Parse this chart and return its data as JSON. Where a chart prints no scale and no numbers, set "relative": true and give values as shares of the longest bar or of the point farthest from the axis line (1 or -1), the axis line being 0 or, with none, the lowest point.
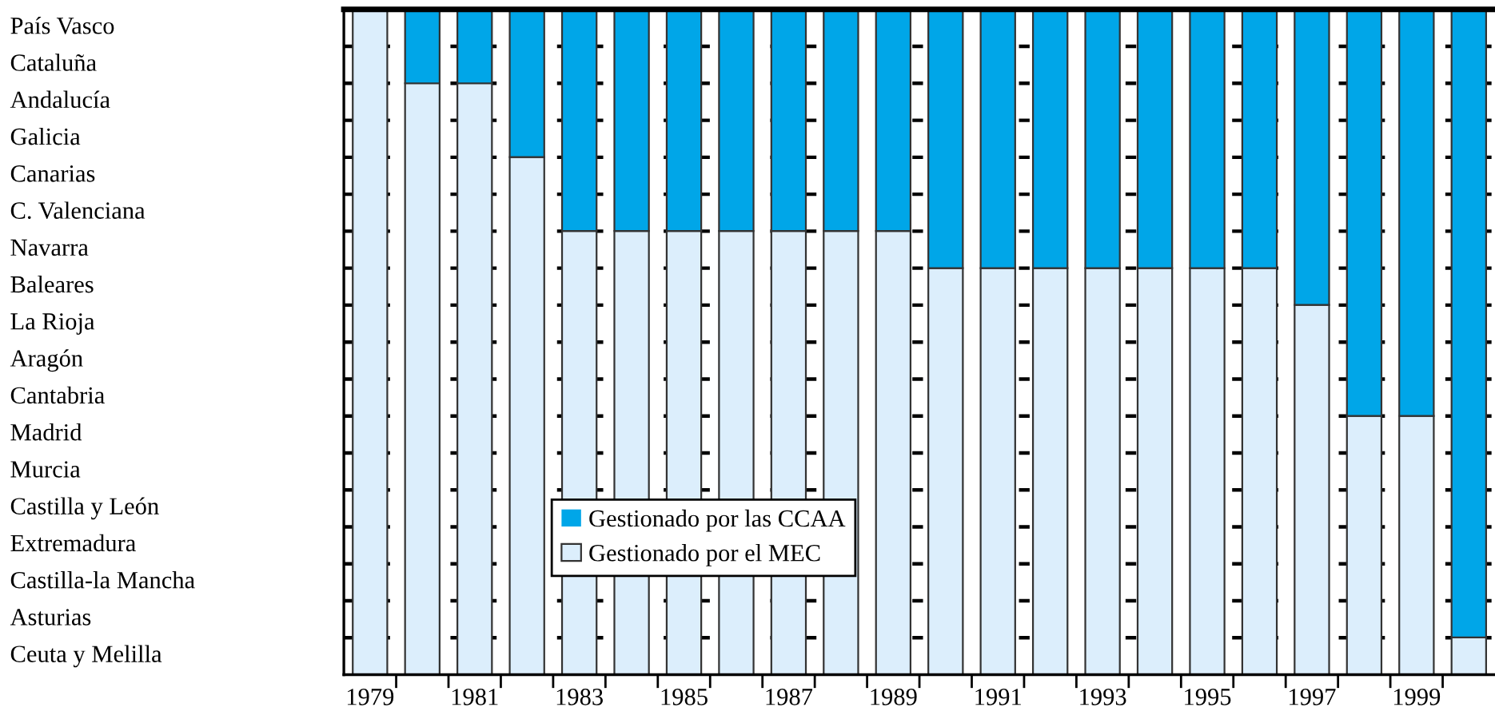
{
  "chart_data": {
    "type": "bar",
    "stacked": true,
    "relative": true,
    "categories": [
      "1979",
      null,
      "1981",
      null,
      "1983",
      null,
      "1985",
      null,
      "1987",
      null,
      "1989",
      null,
      "1991",
      null,
      "1993",
      null,
      "1995",
      null,
      "1997",
      null,
      "1999",
      null
    ],
    "series": [
      {
        "name": "Gestionado por el MEC",
        "color": "#dceefc",
        "values": [
          1,
          0.889,
          0.889,
          0.778,
          0.667,
          0.667,
          0.667,
          0.667,
          0.667,
          0.667,
          0.667,
          0.611,
          0.611,
          0.611,
          0.611,
          0.611,
          0.611,
          0.611,
          0.556,
          0.389,
          0.389,
          0.056
        ]
      },
      {
        "name": "Gestionado por las CCAA",
        "color": "#00a6e8",
        "values": [
          0,
          0.111,
          0.111,
          0.222,
          0.333,
          0.333,
          0.333,
          0.333,
          0.333,
          0.333,
          0.333,
          0.389,
          0.389,
          0.389,
          0.389,
          0.389,
          0.389,
          0.389,
          0.444,
          0.611,
          0.611,
          0.944
        ]
      }
    ],
    "annotations": [
      "País Vasco",
      "Cataluña",
      "Andalucía",
      "Galicia",
      "Canarias",
      "C. Valenciana",
      "Navarra",
      "Baleares",
      "La Rioja",
      "Aragón",
      "Cantabria",
      "Madrid",
      "Murcia",
      "Castilla y León",
      "Extremadura",
      "Castilla-la Mancha",
      "Asturias",
      "Ceuta y Melilla"
    ],
    "grid": "y",
    "legend": "bottom left"
  }
}
